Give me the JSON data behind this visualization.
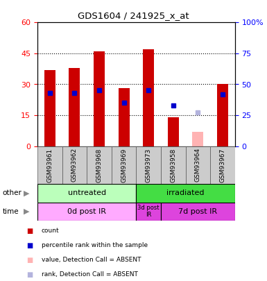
{
  "title": "GDS1604 / 241925_x_at",
  "samples": [
    "GSM93961",
    "GSM93962",
    "GSM93968",
    "GSM93969",
    "GSM93973",
    "GSM93958",
    "GSM93964",
    "GSM93967"
  ],
  "bar_values": [
    37,
    38,
    46,
    28,
    47,
    14,
    0,
    30
  ],
  "bar_absent": [
    false,
    false,
    false,
    false,
    false,
    false,
    true,
    false
  ],
  "rank_values": [
    43,
    43,
    45,
    35,
    45,
    33,
    0,
    42
  ],
  "rank_absent": [
    false,
    false,
    false,
    false,
    false,
    false,
    true,
    false
  ],
  "rank_absent_value": 27,
  "bar_absent_value": 7,
  "bar_color": "#cc0000",
  "bar_absent_color": "#ffb3b3",
  "rank_color": "#0000cc",
  "rank_absent_color": "#b3b3dd",
  "ylim_left": [
    0,
    60
  ],
  "ylim_right": [
    0,
    100
  ],
  "yticks_left": [
    0,
    15,
    30,
    45,
    60
  ],
  "yticks_right": [
    0,
    25,
    50,
    75,
    100
  ],
  "ytick_labels_right": [
    "0",
    "25",
    "50",
    "75",
    "100%"
  ],
  "dotted_lines": [
    15,
    30,
    45
  ],
  "groups_other": [
    {
      "label": "untreated",
      "start": 0,
      "end": 4,
      "color": "#bbffbb"
    },
    {
      "label": "irradiated",
      "start": 4,
      "end": 8,
      "color": "#44dd44"
    }
  ],
  "groups_time": [
    {
      "label": "0d post IR",
      "start": 0,
      "end": 4,
      "color": "#ffaaff"
    },
    {
      "label": "3d post\nIR",
      "start": 4,
      "end": 5,
      "color": "#dd44dd"
    },
    {
      "label": "7d post IR",
      "start": 5,
      "end": 8,
      "color": "#dd44dd"
    }
  ],
  "legend_items": [
    {
      "label": "count",
      "color": "#cc0000"
    },
    {
      "label": "percentile rank within the sample",
      "color": "#0000cc"
    },
    {
      "label": "value, Detection Call = ABSENT",
      "color": "#ffb3b3"
    },
    {
      "label": "rank, Detection Call = ABSENT",
      "color": "#b3b3dd"
    }
  ],
  "bar_width": 0.45
}
